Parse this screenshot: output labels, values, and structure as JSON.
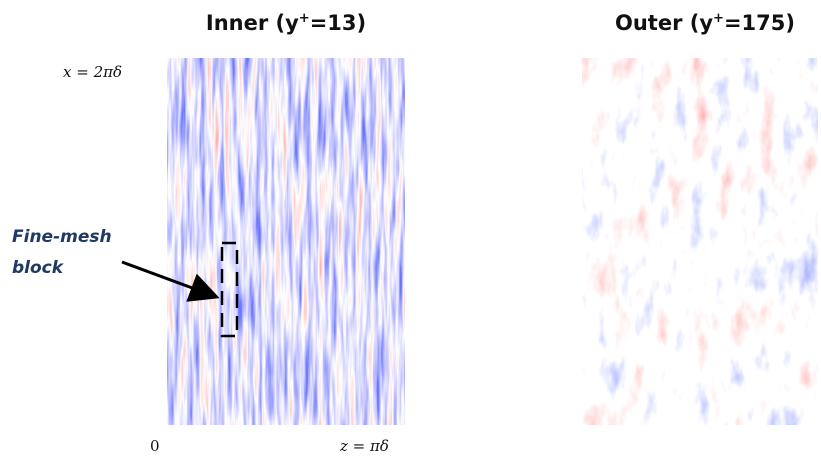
{
  "figure": {
    "panels": [
      {
        "title": {
          "text": "Inner (y",
          "sup": "+",
          "rest": "=13)"
        }
      },
      {
        "title": {
          "text": "Outer (y",
          "sup": "+",
          "rest": "=175)"
        }
      }
    ],
    "axis_labels": {
      "top": "x = 2πδ",
      "origin": "0",
      "right": "z = πδ"
    },
    "annotation": {
      "line1": "Fine-mesh",
      "line2": "block"
    }
  }
}
